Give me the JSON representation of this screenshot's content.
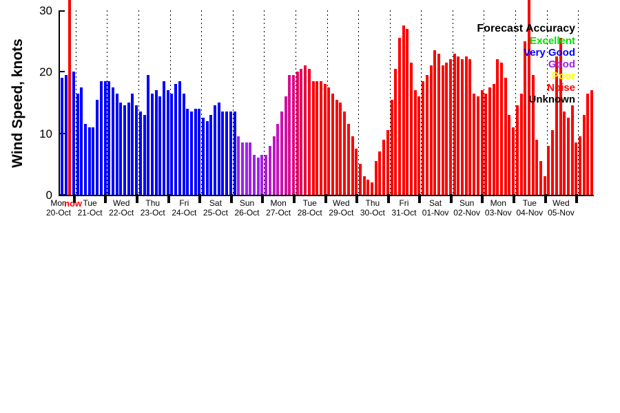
{
  "y_axis": {
    "label": "Wind Speed, knots",
    "ticks": [
      0,
      10,
      20,
      30
    ]
  },
  "now_marker": {
    "label": "now",
    "color": "#ff0000"
  },
  "legend": {
    "title": "Forecast Accuracy",
    "entries": [
      {
        "label": "Excellent",
        "color": "#00dd00"
      },
      {
        "label": "Very Good",
        "color": "#0000ff"
      },
      {
        "label": "Good",
        "color": "#a020f0"
      },
      {
        "label": "Poor",
        "color": "#ffff00"
      },
      {
        "label": "Noise",
        "color": "#ff0000"
      },
      {
        "label": "Unknown",
        "color": "#000000"
      }
    ]
  },
  "chart_data": {
    "type": "bar",
    "title": "",
    "xlabel": "",
    "ylabel": "Wind Speed, knots",
    "ylim": [
      0,
      30
    ],
    "grid": "vertical-dotted-daily",
    "legend_position": "top-right",
    "bars_per_day": 8,
    "days": [
      {
        "day": "Mon",
        "date": "20-Oct",
        "color": "#0000ff",
        "values": [
          19.0,
          19.5,
          20.5,
          20.0,
          16.5,
          17.5,
          11.5,
          11.0
        ]
      },
      {
        "day": "Tue",
        "date": "21-Oct",
        "color": "#0000ff",
        "values": [
          11.0,
          15.5,
          18.5,
          18.5,
          18.5,
          17.5,
          16.5,
          15.0
        ]
      },
      {
        "day": "Wed",
        "date": "22-Oct",
        "color": "#0000ff",
        "values": [
          14.5,
          15.0,
          16.5,
          14.5,
          13.5,
          13.0,
          19.5,
          16.5
        ]
      },
      {
        "day": "Thu",
        "date": "23-Oct",
        "color": "#0000ff",
        "values": [
          17.0,
          16.0,
          18.5,
          17.0,
          16.5,
          18.0,
          18.5,
          16.5
        ]
      },
      {
        "day": "Fri",
        "date": "24-Oct",
        "color": "#0000ff",
        "values": [
          14.0,
          13.5,
          14.0,
          14.0,
          12.5,
          12.0,
          13.0,
          14.5
        ]
      },
      {
        "day": "Sat",
        "date": "25-Oct",
        "color": "#0000ff",
        "colors": [
          "#0000ff",
          "#0000ff",
          "#0000ff",
          "#0000ff",
          "#0000ff",
          "#a020f0",
          "#a020f0",
          "#a020f0"
        ],
        "values": [
          15.0,
          13.5,
          13.5,
          13.5,
          13.5,
          9.5,
          8.5,
          8.5
        ]
      },
      {
        "day": "Sun",
        "date": "26-Oct",
        "color": "#a020f0",
        "colors": [
          "#a020f0",
          "#a020f0",
          "#a41fe9",
          "#a91de1",
          "#af1bd8",
          "#b519cf",
          "#bc17c5",
          "#c315ba"
        ],
        "values": [
          8.5,
          6.5,
          6.0,
          6.5,
          6.5,
          8.0,
          9.5,
          11.5
        ]
      },
      {
        "day": "Mon",
        "date": "27-Oct",
        "color": "#d60e90",
        "colors": [
          "#ca12ae",
          "#d010a0",
          "#d60e90",
          "#dc0b7e",
          "#e2096a",
          "#e80754",
          "#ee043c",
          "#f60222"
        ],
        "values": [
          13.5,
          16.0,
          19.5,
          19.5,
          20.0,
          20.5,
          21.0,
          20.5
        ]
      },
      {
        "day": "Tue",
        "date": "28-Oct",
        "color": "#ff0000",
        "values": [
          18.5,
          18.5,
          18.5,
          18.0,
          17.5,
          16.5,
          15.5,
          15.0
        ]
      },
      {
        "day": "Wed",
        "date": "29-Oct",
        "color": "#ff0000",
        "values": [
          13.5,
          11.5,
          9.5,
          7.5,
          5.0,
          3.0,
          2.5,
          2.0
        ]
      },
      {
        "day": "Thu",
        "date": "30-Oct",
        "color": "#ff0000",
        "values": [
          5.5,
          7.0,
          9.0,
          10.5,
          15.5,
          20.5,
          25.5,
          27.5
        ]
      },
      {
        "day": "Fri",
        "date": "31-Oct",
        "color": "#ff0000",
        "values": [
          27.0,
          21.5,
          17.0,
          16.0,
          18.5,
          19.5,
          21.0,
          23.5
        ]
      },
      {
        "day": "Sat",
        "date": "01-Nov",
        "color": "#ff0000",
        "values": [
          23.0,
          21.0,
          21.5,
          22.0,
          23.0,
          22.5,
          22.0,
          22.5
        ]
      },
      {
        "day": "Sun",
        "date": "02-Nov",
        "color": "#ff0000",
        "values": [
          22.0,
          16.5,
          16.0,
          17.0,
          16.5,
          17.5,
          18.0,
          22.0
        ]
      },
      {
        "day": "Mon",
        "date": "03-Nov",
        "color": "#ff0000",
        "values": [
          21.5,
          19.0,
          13.0,
          11.0,
          14.5,
          16.5,
          25.0,
          32.0
        ]
      },
      {
        "day": "Tue",
        "date": "04-Nov",
        "color": "#ff0000",
        "values": [
          19.5,
          9.0,
          5.5,
          3.0,
          8.0,
          10.5,
          22.5,
          25.5
        ]
      },
      {
        "day": "Wed",
        "date": "05-Nov",
        "color": "#ff0000",
        "values": [
          13.5,
          12.5,
          14.5,
          8.5,
          9.5,
          13.0,
          16.5,
          17.0
        ]
      }
    ]
  }
}
